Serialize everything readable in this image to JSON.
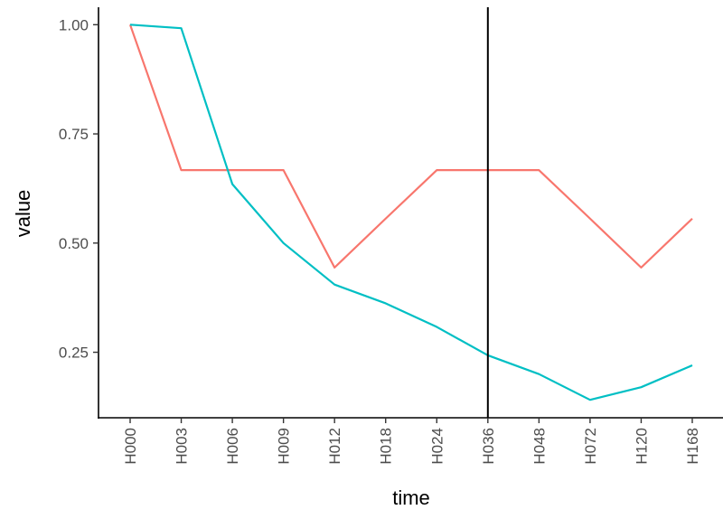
{
  "chart_data": {
    "type": "line",
    "xlabel": "time",
    "ylabel": "value",
    "categories": [
      "H000",
      "H003",
      "H006",
      "H009",
      "H012",
      "H018",
      "H024",
      "H036",
      "H048",
      "H072",
      "H120",
      "H168"
    ],
    "ylim": [
      0.1,
      1.04
    ],
    "yticks": [
      0.25,
      0.5,
      0.75,
      1.0
    ],
    "ytick_labels": [
      "0.25",
      "0.50",
      "0.75",
      "1.00"
    ],
    "grid": false,
    "legend": "none",
    "vline": "H036",
    "series": [
      {
        "color": "#F8766D",
        "values": [
          1.0,
          0.667,
          0.667,
          0.667,
          0.444,
          0.556,
          0.667,
          0.667,
          0.667,
          0.556,
          0.444,
          0.556
        ]
      },
      {
        "color": "#00BFC4",
        "values": [
          1.0,
          0.992,
          0.635,
          0.5,
          0.405,
          0.362,
          0.308,
          0.243,
          0.2,
          0.141,
          0.17,
          0.22
        ]
      }
    ]
  }
}
